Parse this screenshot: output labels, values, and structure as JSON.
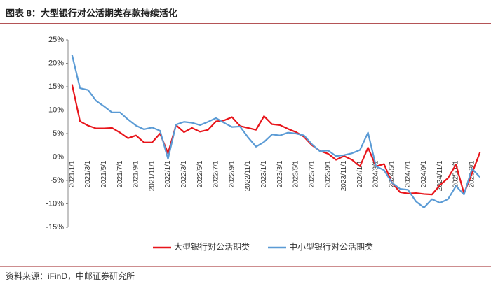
{
  "chart_data": {
    "type": "line",
    "title": "图表 8：大型银行对公活期类存款持续活化",
    "source": "资料来源：iFinD，中邮证券研究所",
    "categories": [
      "2021/1/1",
      null,
      "2021/3/1",
      null,
      "2021/5/1",
      null,
      "2021/7/1",
      null,
      "2021/9/1",
      null,
      "2021/11/1",
      null,
      "2022/1/1",
      null,
      "2022/3/1",
      null,
      "2022/5/1",
      null,
      "2022/7/1",
      null,
      "2022/9/1",
      null,
      "2022/11/1",
      null,
      "2023/1/1",
      null,
      "2023/3/1",
      null,
      "2023/5/1",
      null,
      "2023/7/1",
      null,
      "2023/9/1",
      null,
      "2023/11/1",
      null,
      "2024/1/1",
      null,
      "2024/3/1",
      null,
      "2024/5/1",
      null,
      "2024/7/1",
      null,
      "2024/9/1",
      null,
      "2024/11/1",
      null,
      "2025/1/1",
      null,
      "2025/3/1",
      null
    ],
    "series": [
      {
        "name": "大型银行对公活期类",
        "color": "#e8151b",
        "values": [
          15.5,
          7.6,
          6.7,
          6.1,
          6.1,
          6.2,
          5.2,
          4.0,
          4.6,
          3.1,
          3.1,
          5.0,
          0.8,
          6.8,
          5.3,
          6.2,
          5.4,
          5.8,
          7.6,
          7.8,
          8.5,
          6.6,
          6.2,
          5.8,
          8.7,
          7.0,
          6.8,
          6.0,
          5.3,
          4.3,
          2.5,
          1.3,
          0.7,
          -0.6,
          0.2,
          -0.6,
          -2.0,
          2.0,
          -2.0,
          -1.5,
          -5.5,
          -7.5,
          -7.8,
          -7.7,
          -7.9,
          -8.0,
          -6.0,
          -4.5,
          -1.6,
          -7.8,
          -3.5,
          1.0
        ]
      },
      {
        "name": "中小型银行对公活期类",
        "color": "#5b9bd5",
        "values": [
          21.8,
          14.7,
          14.3,
          12.0,
          10.8,
          9.5,
          9.5,
          8.0,
          6.7,
          5.9,
          6.3,
          5.6,
          -0.4,
          6.9,
          7.5,
          7.3,
          6.8,
          7.5,
          8.3,
          7.3,
          6.4,
          6.5,
          4.2,
          2.2,
          3.2,
          4.8,
          4.6,
          5.2,
          5.0,
          4.6,
          2.7,
          1.2,
          1.4,
          0.2,
          0.4,
          0.8,
          1.5,
          5.2,
          -2.0,
          -2.8,
          -5.5,
          -6.8,
          -7.0,
          -9.5,
          -10.8,
          -9.0,
          -9.8,
          -9.0,
          -6.2,
          -8.0,
          -2.5,
          -4.3
        ]
      }
    ],
    "ylim": [
      -15,
      25
    ],
    "yticks": [
      {
        "value": -15,
        "label": "-15%"
      },
      {
        "value": -10,
        "label": "-10%"
      },
      {
        "value": -5,
        "label": "-5%"
      },
      {
        "value": 0,
        "label": "0%"
      },
      {
        "value": 5,
        "label": "5%"
      },
      {
        "value": 10,
        "label": "10%"
      },
      {
        "value": 15,
        "label": "15%"
      },
      {
        "value": 20,
        "label": "20%"
      },
      {
        "value": 25,
        "label": "25%"
      }
    ],
    "legend": "bottom"
  }
}
